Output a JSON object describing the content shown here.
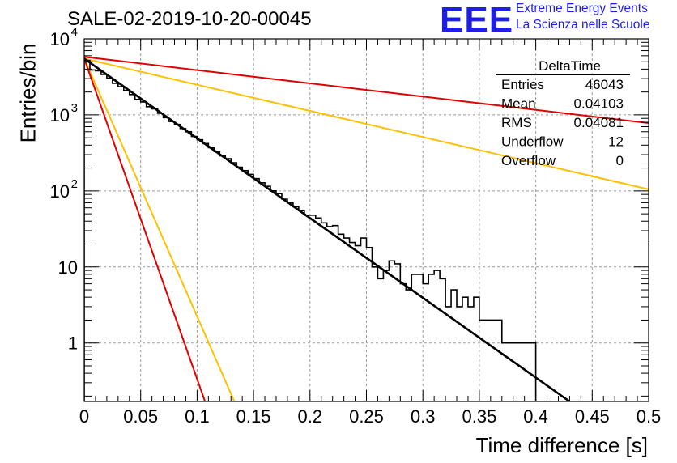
{
  "title": "SALE-02-2019-10-20-00045",
  "logo": {
    "mark": "EEE",
    "line1": "Extreme Energy Events",
    "line2": "La Scienza nelle Scuole",
    "color": "#1e1ee8"
  },
  "chart_data": {
    "type": "line",
    "xlabel": "Time difference [s]",
    "ylabel": "Entries/bin",
    "xlim": [
      0,
      0.5
    ],
    "ylim": [
      0.17,
      10000
    ],
    "yscale": "log",
    "grid": true,
    "x_ticks": [
      "0",
      "0.05",
      "0.1",
      "0.15",
      "0.2",
      "0.25",
      "0.3",
      "0.35",
      "0.4",
      "0.45",
      "0.5"
    ],
    "y_ticks": [
      {
        "value": 1,
        "label": "1"
      },
      {
        "value": 10,
        "label": "10"
      },
      {
        "value": 100,
        "base": "10",
        "exp": "2"
      },
      {
        "value": 1000,
        "base": "10",
        "exp": "3"
      },
      {
        "value": 10000,
        "base": "10",
        "exp": "4"
      }
    ],
    "histogram": {
      "name": "DeltaTime",
      "color": "#000000",
      "bin_width": 0.005,
      "values": [
        5200,
        3900,
        3800,
        3400,
        3050,
        2600,
        2350,
        2100,
        1850,
        1600,
        1480,
        1280,
        1200,
        1050,
        920,
        820,
        750,
        660,
        600,
        520,
        470,
        420,
        370,
        330,
        290,
        265,
        235,
        205,
        185,
        165,
        145,
        128,
        115,
        100,
        92,
        78,
        70,
        62,
        55,
        48,
        48,
        44,
        38,
        34,
        35,
        27,
        24,
        21,
        19,
        24,
        18,
        10,
        7,
        9,
        12,
        11,
        6,
        5,
        8,
        8,
        6,
        8,
        9,
        7,
        3,
        5,
        3,
        4,
        3,
        4,
        2,
        2,
        2,
        2,
        1,
        1,
        1,
        1,
        1,
        1,
        0,
        0,
        0,
        0,
        0,
        0,
        0,
        0,
        0,
        0
      ]
    },
    "fit": {
      "color": "#000000",
      "x": [
        0,
        0.43
      ],
      "y": [
        5500,
        0.17
      ]
    },
    "reference_lines": [
      {
        "color": "#e00000",
        "x": [
          0,
          0.5
        ],
        "y": [
          5800,
          780
        ]
      },
      {
        "color": "#ffc000",
        "x": [
          0,
          0.5
        ],
        "y": [
          5500,
          105
        ]
      },
      {
        "color": "#ffc000",
        "x": [
          0,
          0.133
        ],
        "y": [
          5500,
          0.17
        ]
      },
      {
        "color": "#e00000",
        "x": [
          0,
          0.107
        ],
        "y": [
          5500,
          0.17
        ]
      }
    ],
    "stats": {
      "name": "DeltaTime",
      "rows": [
        {
          "label": "Entries",
          "value": "46043"
        },
        {
          "label": "Mean",
          "value": "0.04103"
        },
        {
          "label": "RMS",
          "value": "0.04081"
        },
        {
          "label": "Underflow",
          "value": "12"
        },
        {
          "label": "Overflow",
          "value": "0"
        }
      ]
    }
  }
}
